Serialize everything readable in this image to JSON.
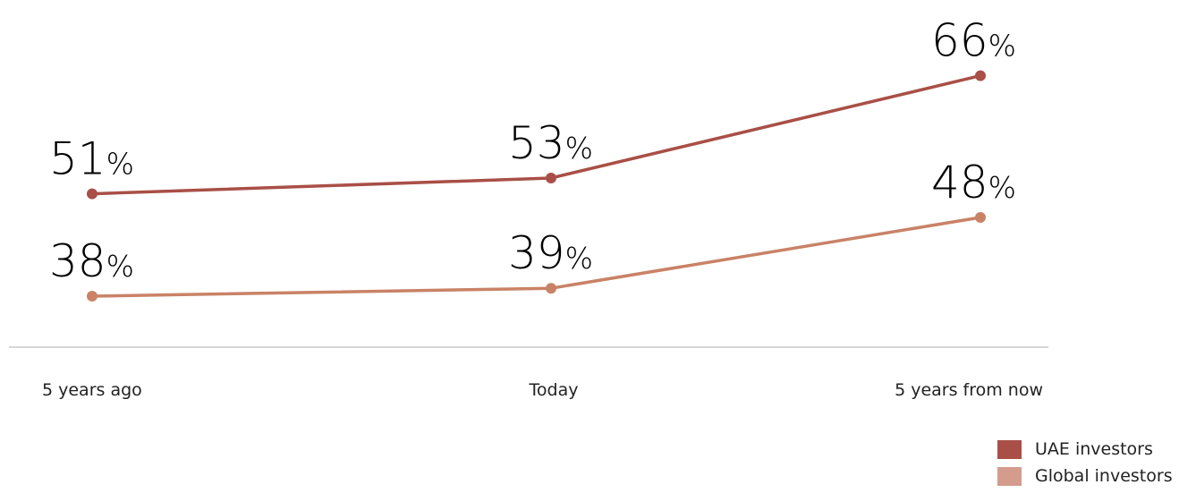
{
  "chart_data": {
    "type": "line",
    "categories": [
      "5 years ago",
      "Today",
      "5 years from now"
    ],
    "series": [
      {
        "name": "UAE investors",
        "values": [
          51,
          53,
          66
        ],
        "labels": [
          "51",
          "53",
          "66"
        ],
        "color": "#a94f47",
        "legend_color": "#a94f47"
      },
      {
        "name": "Global investors",
        "values": [
          38,
          39,
          48
        ],
        "labels": [
          "38",
          "39",
          "48"
        ],
        "color": "#c98266",
        "legend_color": "#d49c8d"
      }
    ],
    "value_suffix": "%",
    "axis_color": "#c8c8c8",
    "grid": false,
    "legend_position": "bottom-right"
  }
}
